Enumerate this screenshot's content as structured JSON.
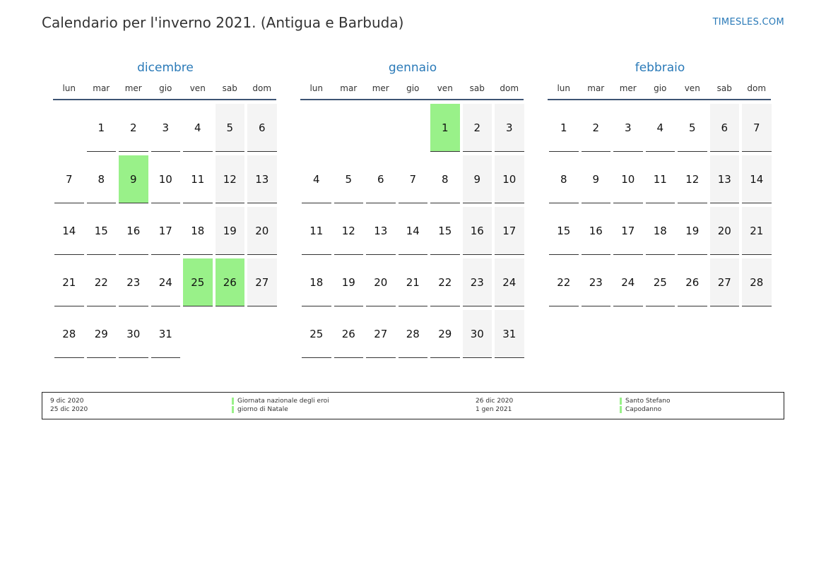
{
  "header": {
    "title": "Calendario per l'inverno 2021. (Antigua e Barbuda)",
    "site": "TIMESLES.COM"
  },
  "weekdays": [
    "lun",
    "mar",
    "mer",
    "gio",
    "ven",
    "sab",
    "dom"
  ],
  "months": [
    {
      "name": "dicembre",
      "weeks": [
        [
          "",
          "1",
          "2",
          "3",
          "4",
          "5",
          "6"
        ],
        [
          "7",
          "8",
          "9",
          "10",
          "11",
          "12",
          "13"
        ],
        [
          "14",
          "15",
          "16",
          "17",
          "18",
          "19",
          "20"
        ],
        [
          "21",
          "22",
          "23",
          "24",
          "25",
          "26",
          "27"
        ],
        [
          "28",
          "29",
          "30",
          "31",
          "",
          "",
          ""
        ]
      ],
      "holidays": [
        "9",
        "25",
        "26"
      ]
    },
    {
      "name": "gennaio",
      "weeks": [
        [
          "",
          "",
          "",
          "",
          "1",
          "2",
          "3"
        ],
        [
          "4",
          "5",
          "6",
          "7",
          "8",
          "9",
          "10"
        ],
        [
          "11",
          "12",
          "13",
          "14",
          "15",
          "16",
          "17"
        ],
        [
          "18",
          "19",
          "20",
          "21",
          "22",
          "23",
          "24"
        ],
        [
          "25",
          "26",
          "27",
          "28",
          "29",
          "30",
          "31"
        ]
      ],
      "holidays": [
        "1"
      ]
    },
    {
      "name": "febbraio",
      "weeks": [
        [
          "1",
          "2",
          "3",
          "4",
          "5",
          "6",
          "7"
        ],
        [
          "8",
          "9",
          "10",
          "11",
          "12",
          "13",
          "14"
        ],
        [
          "15",
          "16",
          "17",
          "18",
          "19",
          "20",
          "21"
        ],
        [
          "22",
          "23",
          "24",
          "25",
          "26",
          "27",
          "28"
        ]
      ],
      "holidays": []
    }
  ],
  "legend": [
    {
      "date": "9 dic 2020",
      "name": "Giornata nazionale degli eroi"
    },
    {
      "date": "25 dic 2020",
      "name": "giorno di Natale"
    },
    {
      "date": "26 dic 2020",
      "name": "Santo Stefano"
    },
    {
      "date": "1 gen 2021",
      "name": "Capodanno"
    }
  ],
  "colors": {
    "holiday": "#99f189",
    "weekend": "#f4f4f4",
    "accent": "#2a7ab8"
  }
}
